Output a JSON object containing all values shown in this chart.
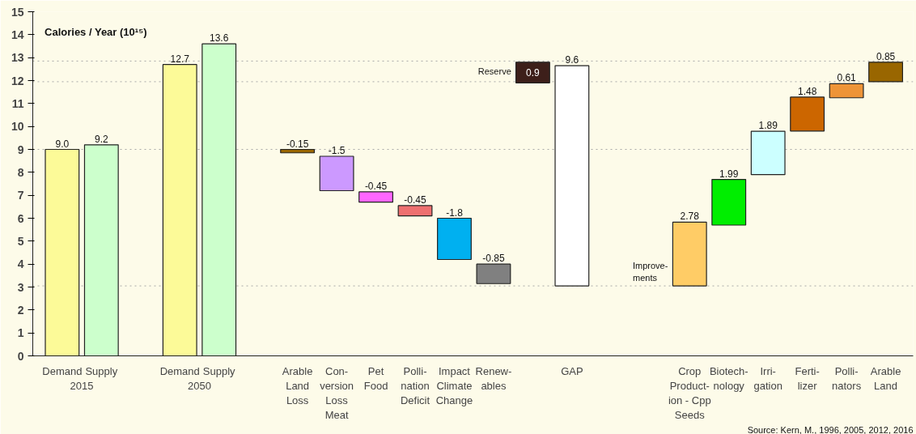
{
  "chart_data": {
    "type": "bar",
    "ylabel": "Calories / Year (10¹⁵)",
    "categories": [
      "Demand",
      "Supply",
      null,
      "Demand",
      "Supply",
      null,
      "Arable\nLand\nLoss",
      "Con-\nversion\nLoss\nMeat",
      "Pet\nFood",
      "Polli-\nnation\nDeficit",
      "Impact\nClimate\nChange",
      "Renew-\nables",
      null,
      "GAP",
      null,
      null,
      "Crop\nProduct-\nion - Cpp\nSeeds",
      "Biotech-\nnology",
      "Irri-\ngation",
      "Ferti-\nlizer",
      "Polli-\nnators",
      "Arable\nLand"
    ],
    "values": [
      9.0,
      9.2,
      null,
      12.7,
      13.6,
      null,
      -0.15,
      -1.5,
      -0.45,
      -0.45,
      -1.8,
      -0.85,
      0.9,
      9.6,
      null,
      null,
      2.78,
      1.99,
      1.89,
      1.48,
      0.61,
      0.85
    ],
    "base": [
      0,
      0,
      null,
      0,
      0,
      null,
      9.0,
      8.7,
      7.15,
      6.55,
      6.0,
      4.0,
      11.9,
      3.05,
      null,
      null,
      3.05,
      5.7,
      7.9,
      9.8,
      11.25,
      11.95
    ],
    "colors": [
      "#fcfa98",
      "#ccffcc",
      null,
      "#fcfa98",
      "#ccffcc",
      null,
      "#996600",
      "#cc99ff",
      "#ff66ff",
      "#ee7070",
      "#00b0f0",
      "#808080",
      "#3d1f1a",
      "#ffffff",
      null,
      null,
      "#ffcc66",
      "#00ee00",
      "#ccffff",
      "#cc6600",
      "#ee9438",
      "#996600"
    ],
    "value_labels": [
      "9.0",
      "9.2",
      null,
      "12.7",
      "13.6",
      null,
      "-0.15",
      "-1.5",
      "-0.45",
      "-0.45",
      "-1.8",
      "-0.85",
      "0.9",
      "9.6",
      null,
      null,
      "2.78",
      "1.99",
      "1.89",
      "1.48",
      "0.61",
      "0.85"
    ],
    "ylim": [
      0,
      15
    ],
    "yticks": [
      0,
      1,
      2,
      3,
      4,
      5,
      6,
      7,
      8,
      9,
      10,
      11,
      12,
      13,
      14,
      15
    ],
    "ref_lines": [
      {
        "axis": "y",
        "value": 9.0,
        "color": "#aaaaaa",
        "line_style": "dotted"
      },
      {
        "axis": "y",
        "value": 11.95,
        "color": "#aaaaaa",
        "line_style": "dotted"
      },
      {
        "axis": "y",
        "value": 12.85,
        "color": "#aaaaaa",
        "line_style": "dotted"
      },
      {
        "axis": "y",
        "value": 3.05,
        "color": "#aaaaaa",
        "line_style": "dotted"
      }
    ],
    "annotations": [
      "2015",
      "2050",
      "Reserve",
      "Improve-\nments",
      "Source: Kern, M., 1996, 2005, 2012, 2016"
    ],
    "grid": false
  }
}
